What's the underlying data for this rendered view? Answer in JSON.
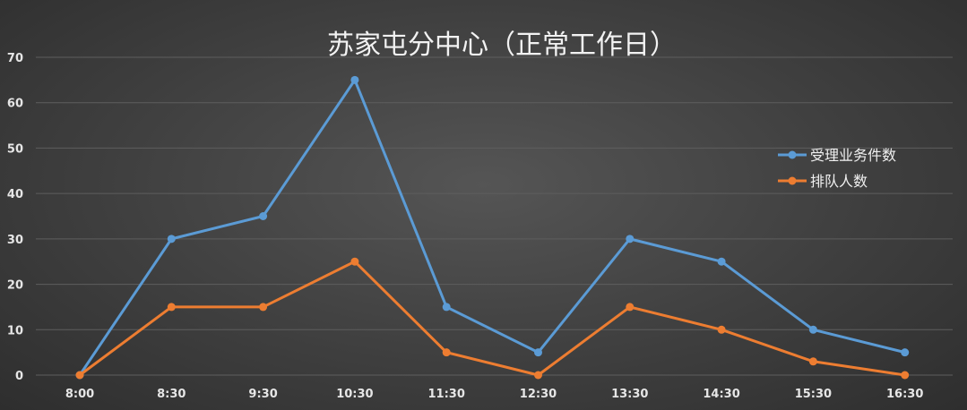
{
  "chart_data": {
    "type": "line",
    "title": "苏家屯分中心（正常工作日）",
    "xlabel": "",
    "ylabel": "",
    "ylim": [
      0,
      70
    ],
    "yticks": [
      0,
      10,
      20,
      30,
      40,
      50,
      60,
      70
    ],
    "categories": [
      "8:00",
      "8:30",
      "9:30",
      "10:30",
      "11:30",
      "12:30",
      "13:30",
      "14:30",
      "15:30",
      "16:30"
    ],
    "grid": true,
    "legend_position": "right",
    "series": [
      {
        "name": "受理业务件数",
        "color": "#5b9bd5",
        "values": [
          0,
          30,
          35,
          65,
          15,
          5,
          30,
          25,
          10,
          5
        ]
      },
      {
        "name": "排队人数",
        "color": "#ed7d31",
        "values": [
          0,
          15,
          15,
          25,
          5,
          0,
          15,
          10,
          3,
          0
        ]
      }
    ]
  }
}
